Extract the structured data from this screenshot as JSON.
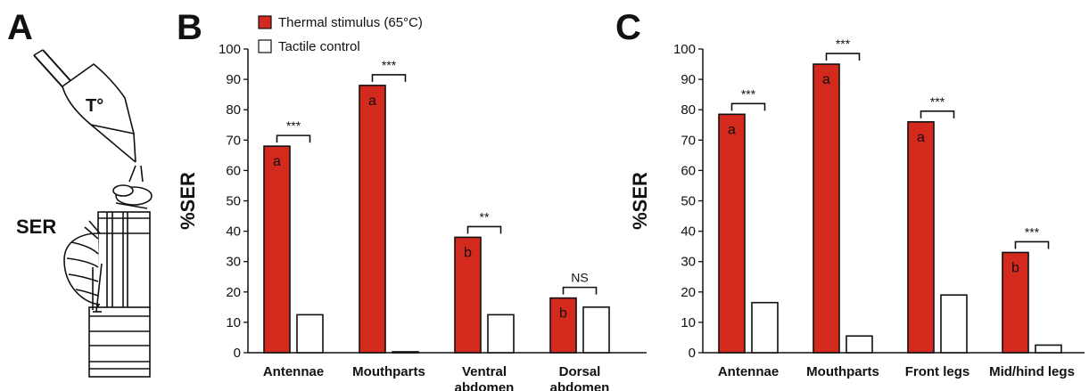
{
  "panels": {
    "a": {
      "letter": "A",
      "probe_label": "T°",
      "response_label": "SER"
    },
    "b": {
      "letter": "B"
    },
    "c": {
      "letter": "C"
    }
  },
  "legend": {
    "thermal": "Thermal stimulus (65°C)",
    "tactile": "Tactile control"
  },
  "colors": {
    "thermal": "#d42a1e",
    "tactile": "#ffffff",
    "stroke": "#111111"
  },
  "chart_data": [
    {
      "type": "bar",
      "ylabel": "%SER",
      "ylim": [
        0,
        100
      ],
      "yticks": [
        0,
        10,
        20,
        30,
        40,
        50,
        60,
        70,
        80,
        90,
        100
      ],
      "categories": [
        [
          "Antennae"
        ],
        [
          "Mouthparts"
        ],
        [
          "Ventral",
          "abdomen"
        ],
        [
          "Dorsal",
          "abdomen"
        ]
      ],
      "series": [
        {
          "name": "Thermal stimulus (65°C)",
          "values": [
            68,
            88,
            38,
            18
          ]
        },
        {
          "name": "Tactile control",
          "values": [
            12.5,
            0.3,
            12.5,
            15
          ]
        }
      ],
      "bar_letters": [
        "a",
        "a",
        "b",
        "b"
      ],
      "significance": [
        "***",
        "***",
        "**",
        "NS"
      ]
    },
    {
      "type": "bar",
      "ylabel": "%SER",
      "ylim": [
        0,
        100
      ],
      "yticks": [
        0,
        10,
        20,
        30,
        40,
        50,
        60,
        70,
        80,
        90,
        100
      ],
      "categories": [
        [
          "Antennae"
        ],
        [
          "Mouthparts"
        ],
        [
          "Front legs"
        ],
        [
          "Mid/hind legs"
        ]
      ],
      "series": [
        {
          "name": "Thermal stimulus (65°C)",
          "values": [
            78.5,
            95,
            76,
            33
          ]
        },
        {
          "name": "Tactile control",
          "values": [
            16.5,
            5.5,
            19,
            2.5
          ]
        }
      ],
      "bar_letters": [
        "a",
        "a",
        "a",
        "b"
      ],
      "significance": [
        "***",
        "***",
        "***",
        "***"
      ]
    }
  ]
}
